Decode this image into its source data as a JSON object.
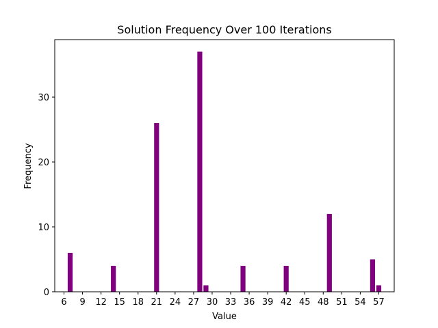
{
  "chart_data": {
    "type": "bar",
    "title": "Solution Frequency Over 100 Iterations",
    "xlabel": "Value",
    "ylabel": "Frequency",
    "bar_color": "#800080",
    "xlim": [
      4.5,
      59.5
    ],
    "ylim": [
      0,
      38.85
    ],
    "xticks": [
      6,
      9,
      12,
      15,
      18,
      21,
      24,
      27,
      30,
      33,
      36,
      39,
      42,
      45,
      48,
      51,
      54,
      57
    ],
    "yticks": [
      0,
      10,
      20,
      30
    ],
    "x": [
      7,
      14,
      21,
      28,
      29,
      35,
      42,
      49,
      56,
      57
    ],
    "values": [
      6,
      4,
      26,
      37,
      1,
      4,
      4,
      12,
      5,
      1
    ],
    "bar_width": 0.8,
    "grid": false
  }
}
